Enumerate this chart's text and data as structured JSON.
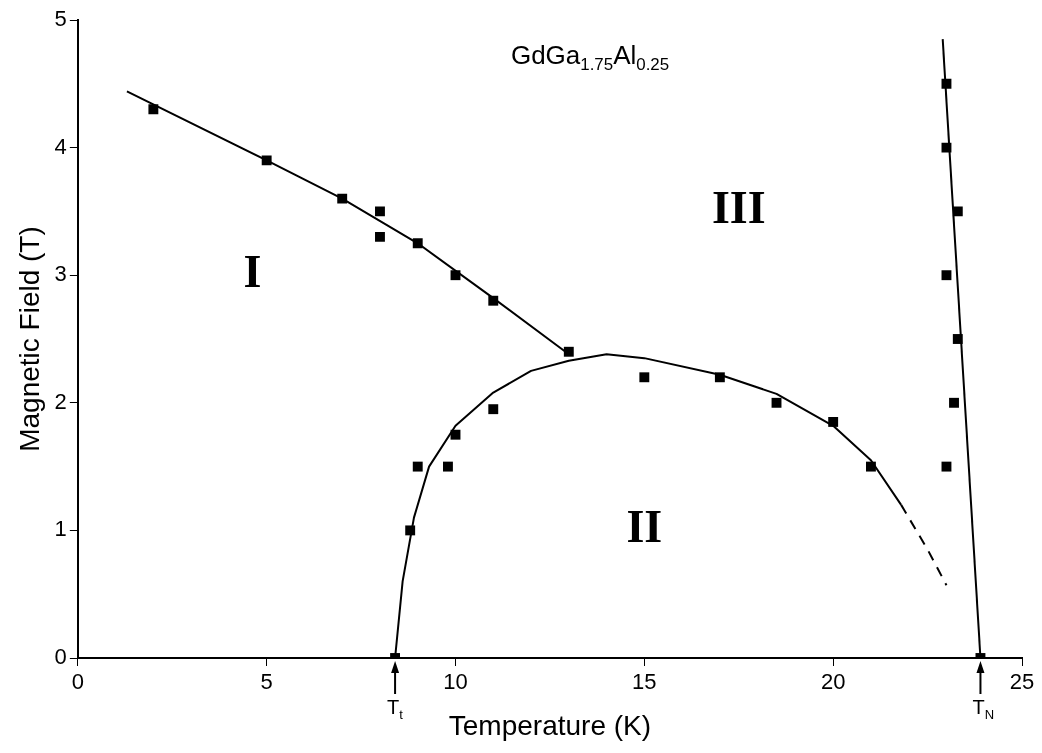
{
  "chart_data": {
    "type": "scatter",
    "title": "GdGa$_{1.75}$Al$_{0.25}$",
    "xlabel": "Temperature (K)",
    "ylabel": "Magnetic Field (T)",
    "xlim": [
      0,
      25
    ],
    "ylim": [
      0,
      5
    ],
    "xticks": [
      0,
      5,
      10,
      15,
      20,
      25
    ],
    "yticks": [
      0,
      1,
      2,
      3,
      4,
      5
    ],
    "series": [
      {
        "marker": "square",
        "color": "#000000",
        "x": [
          2,
          5,
          7,
          8,
          8,
          9,
          10,
          11,
          13,
          8.4,
          8.8,
          9,
          9.8,
          10,
          11,
          15,
          17,
          18.5,
          20,
          21,
          23,
          23,
          23.3,
          23,
          23.3,
          23.2,
          23,
          23.9
        ],
        "values": [
          4.3,
          3.9,
          3.6,
          3.5,
          3.3,
          3.25,
          3.0,
          2.8,
          2.4,
          0,
          1.0,
          1.5,
          1.5,
          1.75,
          1.95,
          2.2,
          2.2,
          2.0,
          1.85,
          1.5,
          4.5,
          4.0,
          3.5,
          3.0,
          2.5,
          2.0,
          1.5,
          0
        ]
      },
      {
        "type": "line",
        "marker": "none",
        "line_style": "solid",
        "color": "#000000",
        "x": [
          1.3,
          5,
          7,
          9,
          11,
          13
        ],
        "values": [
          4.44,
          3.9,
          3.6,
          3.25,
          2.82,
          2.38
        ]
      },
      {
        "type": "line",
        "marker": "none",
        "line_style": "solid",
        "color": "#000000",
        "x": [
          8.4,
          8.6,
          8.9,
          9.3,
          10,
          11,
          12,
          13,
          14,
          15,
          17,
          18.5,
          20,
          21,
          21.8
        ],
        "values": [
          0,
          0.6,
          1.1,
          1.5,
          1.82,
          2.08,
          2.25,
          2.33,
          2.38,
          2.35,
          2.22,
          2.07,
          1.82,
          1.55,
          1.2
        ]
      },
      {
        "type": "line",
        "marker": "none",
        "line_style": "dashed",
        "color": "#000000",
        "x": [
          21.8,
          22.5,
          23
        ],
        "values": [
          1.2,
          0.85,
          0.57
        ]
      },
      {
        "type": "line",
        "marker": "none",
        "line_style": "solid",
        "color": "#000000",
        "x": [
          22.9,
          23.9
        ],
        "values": [
          4.85,
          0
        ]
      }
    ],
    "annotations": [
      "I",
      "II",
      "III",
      {
        "text": "T$_{t}$",
        "x": 8.4,
        "y": 0
      },
      {
        "text": "T$_{N}$",
        "x": 23.9,
        "y": 0
      }
    ]
  }
}
